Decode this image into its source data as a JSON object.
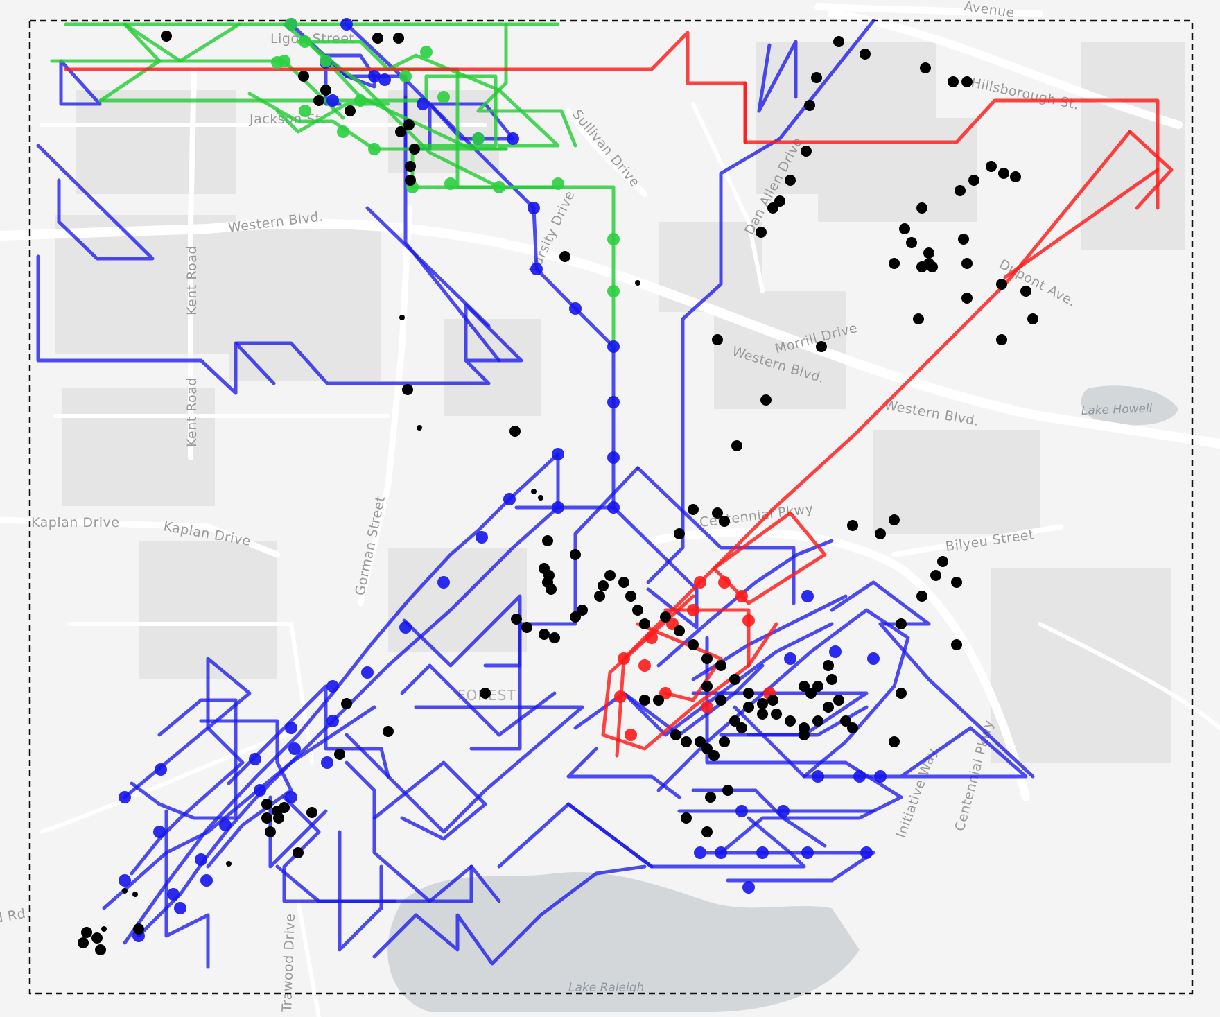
{
  "map": {
    "street_labels": [
      {
        "id": "hillsborough-st",
        "text": "Hillsborough St."
      },
      {
        "id": "avenue",
        "text": "Avenue"
      },
      {
        "id": "sullivan-drive",
        "text": "Sullivan Drive"
      },
      {
        "id": "western-blvd-1",
        "text": "Western Blvd."
      },
      {
        "id": "western-blvd-2",
        "text": "Western Blvd."
      },
      {
        "id": "western-blvd-3",
        "text": "Western Blvd."
      },
      {
        "id": "kent-road-1",
        "text": "Kent Road"
      },
      {
        "id": "kent-road-2",
        "text": "Kent Road"
      },
      {
        "id": "kaplan-drive-1",
        "text": "Kaplan Drive"
      },
      {
        "id": "kaplan-drive-2",
        "text": "Kaplan Drive"
      },
      {
        "id": "gorman-street",
        "text": "Gorman Street"
      },
      {
        "id": "varsity-drive",
        "text": "Varsity Drive"
      },
      {
        "id": "morrill-drive",
        "text": "Morrill Drive"
      },
      {
        "id": "dan-allen-drive",
        "text": "Dan Allen Drive"
      },
      {
        "id": "centennial-pkwy",
        "text": "Centennial Pkwy"
      },
      {
        "id": "centennial-pkwy-2",
        "text": "Centennial Pkwy"
      },
      {
        "id": "bilyeu-street",
        "text": "Bilyeu Street"
      },
      {
        "id": "innovation-way",
        "text": "Initiative Way"
      },
      {
        "id": "trawood-drive",
        "text": "Trawood Drive"
      },
      {
        "id": "jackson-st",
        "text": "Jackson St."
      },
      {
        "id": "ligon-street",
        "text": "Ligon Street"
      },
      {
        "id": "dupont-ave",
        "text": "Dupont Ave."
      },
      {
        "id": "yates-mill",
        "text": "Yates Mill Pond Rd."
      },
      {
        "id": "forest",
        "text": "FOREST"
      }
    ],
    "water_labels": [
      {
        "id": "lake-raleigh",
        "text": "Lake Raleigh"
      },
      {
        "id": "lake-howell",
        "text": "Lake Howell"
      }
    ],
    "colors": {
      "background": "#f4f4f4",
      "block": "#e4e4e4",
      "road": "#ffffff",
      "water": "#d3d7da",
      "route_blue": "#0000ee",
      "route_red": "#ff1010",
      "route_green": "#22cc22",
      "point": "#000000",
      "frame": "#111111"
    },
    "layers": [
      {
        "id": "route-blue",
        "color": "blue"
      },
      {
        "id": "route-green",
        "color": "green"
      },
      {
        "id": "route-red",
        "color": "red"
      },
      {
        "id": "stops-black",
        "color": "black"
      }
    ]
  }
}
